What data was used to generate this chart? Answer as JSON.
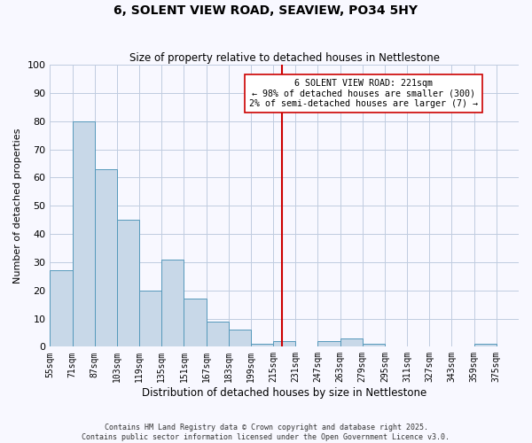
{
  "title": "6, SOLENT VIEW ROAD, SEAVIEW, PO34 5HY",
  "subtitle": "Size of property relative to detached houses in Nettlestone",
  "xlabel": "Distribution of detached houses by size in Nettlestone",
  "ylabel": "Number of detached properties",
  "bin_labels": [
    "55sqm",
    "71sqm",
    "87sqm",
    "103sqm",
    "119sqm",
    "135sqm",
    "151sqm",
    "167sqm",
    "183sqm",
    "199sqm",
    "215sqm",
    "231sqm",
    "247sqm",
    "263sqm",
    "279sqm",
    "295sqm",
    "311sqm",
    "327sqm",
    "343sqm",
    "359sqm",
    "375sqm"
  ],
  "bin_edges": [
    55,
    71,
    87,
    103,
    119,
    135,
    151,
    167,
    183,
    199,
    215,
    231,
    247,
    263,
    279,
    295,
    311,
    327,
    343,
    359,
    375,
    391
  ],
  "counts": [
    27,
    80,
    63,
    45,
    20,
    31,
    17,
    9,
    6,
    1,
    2,
    0,
    2,
    3,
    1,
    0,
    0,
    0,
    0,
    1,
    0
  ],
  "bar_color": "#c8d8e8",
  "bar_edgecolor": "#5599bb",
  "vline_x": 221,
  "vline_color": "#cc0000",
  "annotation_title": "6 SOLENT VIEW ROAD: 221sqm",
  "annotation_line1": "← 98% of detached houses are smaller (300)",
  "annotation_line2": "2% of semi-detached houses are larger (7) →",
  "annotation_box_edgecolor": "#cc0000",
  "ylim": [
    0,
    100
  ],
  "yticks": [
    0,
    10,
    20,
    30,
    40,
    50,
    60,
    70,
    80,
    90,
    100
  ],
  "background_color": "#f8f8ff",
  "grid_color": "#c0cce0",
  "footer1": "Contains HM Land Registry data © Crown copyright and database right 2025.",
  "footer2": "Contains public sector information licensed under the Open Government Licence v3.0."
}
